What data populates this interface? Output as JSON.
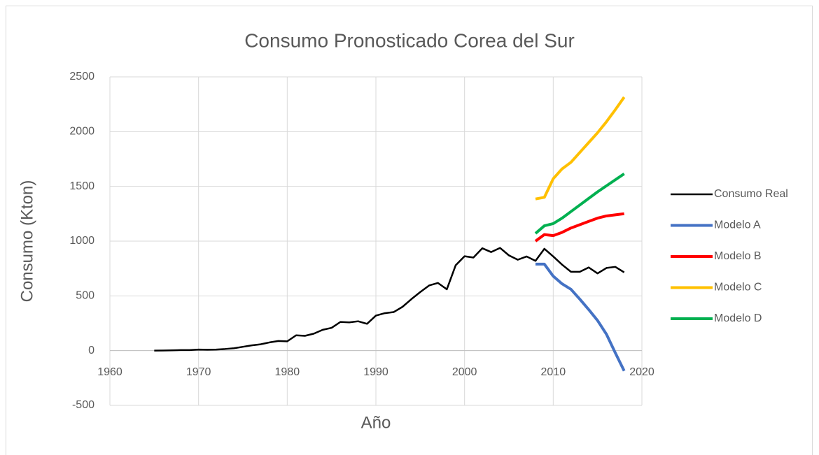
{
  "chart_data": {
    "type": "line",
    "title": "Consumo Pronosticado Corea del Sur",
    "x_label": "Año",
    "y_label": "Consumo (Kton)",
    "xlim": [
      1960,
      2020
    ],
    "xticks": [
      1960,
      1970,
      1980,
      1990,
      2000,
      2010,
      2020
    ],
    "ylim": [
      -500,
      2500
    ],
    "yticks": [
      -500,
      0,
      500,
      1000,
      1500,
      2000,
      2500
    ],
    "grid": true,
    "legend": "right",
    "series": [
      {
        "name": "Consumo Real",
        "color": "#000000",
        "x": [
          1965,
          1966,
          1967,
          1968,
          1969,
          1970,
          1971,
          1972,
          1973,
          1974,
          1975,
          1976,
          1977,
          1978,
          1979,
          1980,
          1981,
          1982,
          1983,
          1984,
          1985,
          1986,
          1987,
          1988,
          1989,
          1990,
          1991,
          1992,
          1993,
          1994,
          1995,
          1996,
          1997,
          1998,
          1999,
          2000,
          2001,
          2002,
          2003,
          2004,
          2005,
          2006,
          2007,
          2008,
          2009,
          2010,
          2011,
          2012,
          2013,
          2014,
          2015,
          2016,
          2017,
          2018
        ],
        "values": [
          0,
          1,
          3,
          5,
          5,
          10,
          8,
          10,
          15,
          22,
          35,
          48,
          58,
          75,
          88,
          85,
          140,
          135,
          155,
          190,
          208,
          262,
          258,
          268,
          245,
          320,
          342,
          352,
          400,
          470,
          535,
          595,
          618,
          560,
          780,
          862,
          850,
          935,
          900,
          938,
          870,
          830,
          860,
          820,
          930,
          860,
          785,
          720,
          720,
          760,
          705,
          755,
          765,
          715
        ]
      },
      {
        "name": "Modelo A",
        "color": "#4472c4",
        "x": [
          2008,
          2009,
          2010,
          2011,
          2012,
          2013,
          2014,
          2015,
          2016,
          2017,
          2018
        ],
        "values": [
          790,
          790,
          680,
          610,
          560,
          470,
          375,
          275,
          150,
          -20,
          -185
        ]
      },
      {
        "name": "Modelo B",
        "color": "#ff0000",
        "x": [
          2008,
          2009,
          2010,
          2011,
          2012,
          2013,
          2014,
          2015,
          2016,
          2017,
          2018
        ],
        "values": [
          1000,
          1060,
          1050,
          1080,
          1120,
          1150,
          1180,
          1210,
          1230,
          1240,
          1250
        ]
      },
      {
        "name": "Modelo C",
        "color": "#ffc000",
        "x": [
          2008,
          2009,
          2010,
          2011,
          2012,
          2013,
          2014,
          2015,
          2016,
          2017,
          2018
        ],
        "values": [
          1385,
          1400,
          1570,
          1660,
          1720,
          1810,
          1900,
          1990,
          2090,
          2200,
          2315
        ]
      },
      {
        "name": "Modelo D",
        "color": "#00b050",
        "x": [
          2008,
          2009,
          2010,
          2011,
          2012,
          2013,
          2014,
          2015,
          2016,
          2017,
          2018
        ],
        "values": [
          1070,
          1140,
          1160,
          1210,
          1270,
          1330,
          1390,
          1450,
          1505,
          1560,
          1615
        ]
      }
    ]
  }
}
